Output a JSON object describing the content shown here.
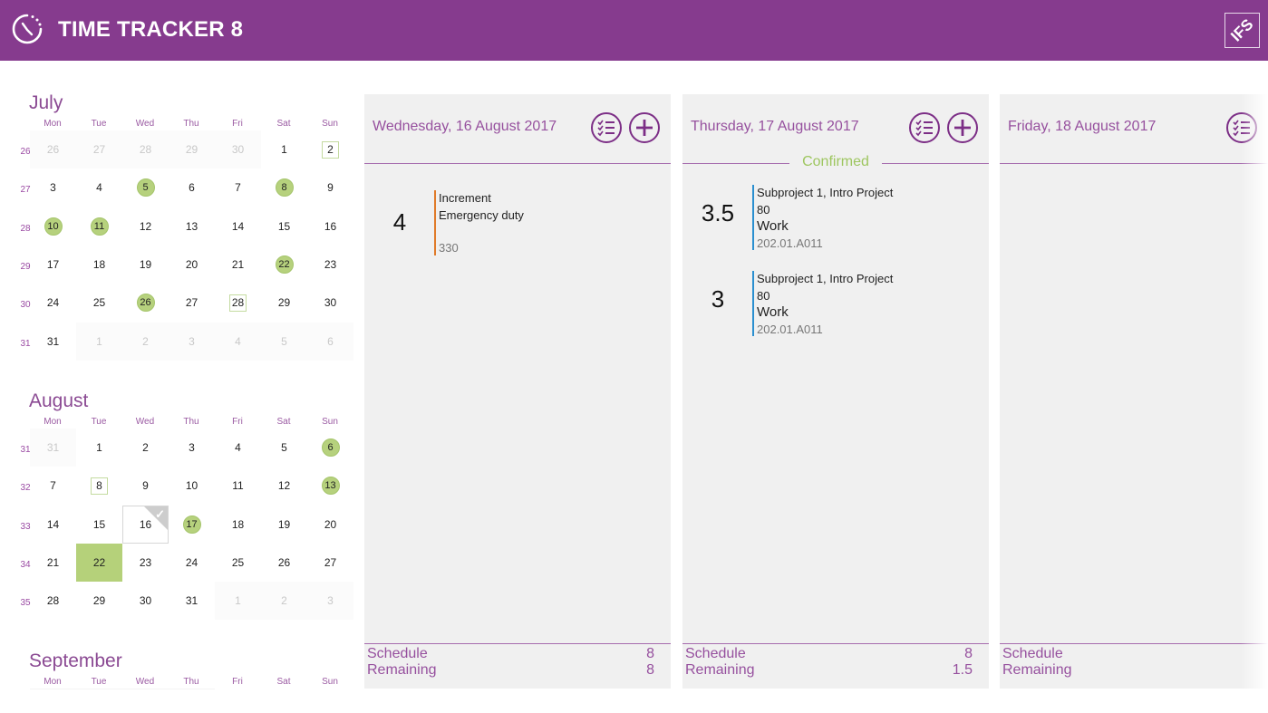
{
  "header": {
    "title": "TIME TRACKER 8",
    "brand": "IFS",
    "color": "#863b8e"
  },
  "calendar": {
    "weekday_labels": [
      "Mon",
      "Tue",
      "Wed",
      "Thu",
      "Fri",
      "Sat",
      "Sun"
    ],
    "months": [
      {
        "name": "July",
        "weeks": [
          {
            "num": "26",
            "days": [
              "26",
              "27",
              "28",
              "29",
              "30",
              "1",
              "2"
            ]
          },
          {
            "num": "27",
            "days": [
              "3",
              "4",
              "5",
              "6",
              "7",
              "8",
              "9"
            ]
          },
          {
            "num": "28",
            "days": [
              "10",
              "11",
              "12",
              "13",
              "14",
              "15",
              "16"
            ]
          },
          {
            "num": "29",
            "days": [
              "17",
              "18",
              "19",
              "20",
              "21",
              "22",
              "23"
            ]
          },
          {
            "num": "30",
            "days": [
              "24",
              "25",
              "26",
              "27",
              "28",
              "29",
              "30"
            ]
          },
          {
            "num": "31",
            "days": [
              "31",
              "1",
              "2",
              "3",
              "4",
              "5",
              "6"
            ]
          }
        ]
      },
      {
        "name": "August",
        "weeks": [
          {
            "num": "31",
            "days": [
              "31",
              "1",
              "2",
              "3",
              "4",
              "5",
              "6"
            ]
          },
          {
            "num": "32",
            "days": [
              "7",
              "8",
              "9",
              "10",
              "11",
              "12",
              "13"
            ]
          },
          {
            "num": "33",
            "days": [
              "14",
              "15",
              "16",
              "17",
              "18",
              "19",
              "20"
            ]
          },
          {
            "num": "34",
            "days": [
              "21",
              "22",
              "23",
              "24",
              "25",
              "26",
              "27"
            ]
          },
          {
            "num": "35",
            "days": [
              "28",
              "29",
              "30",
              "31",
              "1",
              "2",
              "3"
            ]
          }
        ]
      },
      {
        "name": "September",
        "weeks": []
      }
    ]
  },
  "days": [
    {
      "title": "Wednesday, 16 August 2017",
      "status": "",
      "entries": [
        {
          "hours": "4",
          "line1": "Increment",
          "line2": "Emergency duty",
          "line3": "",
          "code": "330",
          "bar_color": "#e07b2a"
        }
      ],
      "schedule_label": "Schedule",
      "schedule_value": "8",
      "remaining_label": "Remaining",
      "remaining_value": "8"
    },
    {
      "title": "Thursday, 17 August 2017",
      "status": "Confirmed",
      "entries": [
        {
          "hours": "3.5",
          "line1": "Subproject 1, Intro Project",
          "line2": "80",
          "line3": "Work",
          "code": "202.01.A011",
          "bar_color": "#2a8fd0"
        },
        {
          "hours": "3",
          "line1": "Subproject 1, Intro Project",
          "line2": "80",
          "line3": "Work",
          "code": "202.01.A011",
          "bar_color": "#2a8fd0"
        }
      ],
      "schedule_label": "Schedule",
      "schedule_value": "8",
      "remaining_label": "Remaining",
      "remaining_value": "1.5"
    },
    {
      "title": "Friday, 18 August 2017",
      "status": "",
      "entries": [],
      "schedule_label": "Schedule",
      "schedule_value": "",
      "remaining_label": "Remaining",
      "remaining_value": ""
    }
  ]
}
